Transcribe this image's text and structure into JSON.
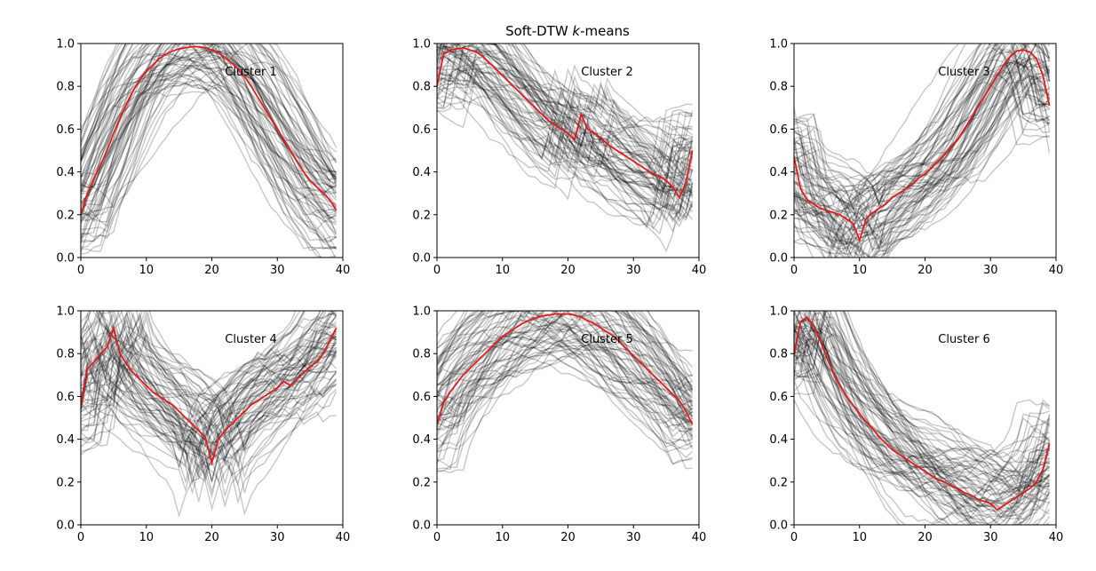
{
  "figure": {
    "title_text": "Soft-DTW ",
    "title_k": "k",
    "title_suffix": "-means"
  },
  "colors": {
    "series": "#000000",
    "barycenter": "#e41a1c",
    "axis": "#000000",
    "background": "#ffffff"
  },
  "chart_data": [
    {
      "type": "line",
      "annotation": "Cluster 1",
      "xlim": [
        0,
        40
      ],
      "ylim": [
        0,
        1
      ],
      "xticks": [
        0,
        10,
        20,
        30,
        40
      ],
      "yticks": [
        0.0,
        0.2,
        0.4,
        0.6,
        0.8,
        1.0
      ],
      "series": [
        {
          "x": [
            0,
            1,
            2,
            3,
            4,
            5,
            6,
            7,
            8,
            9,
            10,
            11,
            12,
            13,
            14,
            15,
            16,
            17,
            18,
            19,
            20,
            21,
            22,
            23,
            24,
            25,
            26,
            27,
            28,
            29,
            30,
            31,
            32,
            33,
            34,
            35,
            36,
            37,
            38,
            39
          ],
          "y": [
            0.2,
            0.3,
            0.37,
            0.43,
            0.5,
            0.58,
            0.65,
            0.72,
            0.78,
            0.83,
            0.87,
            0.9,
            0.93,
            0.95,
            0.965,
            0.975,
            0.98,
            0.985,
            0.985,
            0.98,
            0.97,
            0.955,
            0.935,
            0.91,
            0.88,
            0.845,
            0.8,
            0.75,
            0.7,
            0.65,
            0.6,
            0.55,
            0.5,
            0.45,
            0.4,
            0.36,
            0.33,
            0.3,
            0.27,
            0.22
          ]
        }
      ]
    },
    {
      "type": "line",
      "annotation": "Cluster 2",
      "xlim": [
        0,
        40
      ],
      "ylim": [
        0,
        1
      ],
      "xticks": [
        0,
        10,
        20,
        30,
        40
      ],
      "yticks": [
        0.0,
        0.2,
        0.4,
        0.6,
        0.8,
        1.0
      ],
      "series": [
        {
          "x": [
            0,
            1,
            2,
            3,
            4,
            5,
            6,
            7,
            8,
            9,
            10,
            11,
            12,
            13,
            14,
            15,
            16,
            17,
            18,
            19,
            20,
            21,
            22,
            23,
            24,
            25,
            26,
            27,
            28,
            29,
            30,
            31,
            32,
            33,
            34,
            35,
            36,
            37,
            38,
            39
          ],
          "y": [
            0.8,
            0.95,
            0.97,
            0.975,
            0.98,
            0.97,
            0.96,
            0.94,
            0.91,
            0.88,
            0.85,
            0.82,
            0.79,
            0.76,
            0.73,
            0.7,
            0.67,
            0.64,
            0.62,
            0.6,
            0.58,
            0.55,
            0.67,
            0.6,
            0.58,
            0.56,
            0.53,
            0.51,
            0.49,
            0.47,
            0.45,
            0.43,
            0.41,
            0.39,
            0.38,
            0.36,
            0.33,
            0.28,
            0.35,
            0.5
          ]
        }
      ]
    },
    {
      "type": "line",
      "annotation": "Cluster 3",
      "xlim": [
        0,
        40
      ],
      "ylim": [
        0,
        1
      ],
      "xticks": [
        0,
        10,
        20,
        30,
        40
      ],
      "yticks": [
        0.0,
        0.2,
        0.4,
        0.6,
        0.8,
        1.0
      ],
      "series": [
        {
          "x": [
            0,
            1,
            2,
            3,
            4,
            5,
            6,
            7,
            8,
            9,
            10,
            11,
            12,
            13,
            14,
            15,
            16,
            17,
            18,
            19,
            20,
            21,
            22,
            23,
            24,
            25,
            26,
            27,
            28,
            29,
            30,
            31,
            32,
            33,
            34,
            35,
            36,
            37,
            38,
            39
          ],
          "y": [
            0.47,
            0.32,
            0.27,
            0.25,
            0.23,
            0.22,
            0.21,
            0.2,
            0.18,
            0.16,
            0.08,
            0.18,
            0.21,
            0.23,
            0.25,
            0.28,
            0.3,
            0.32,
            0.34,
            0.37,
            0.39,
            0.42,
            0.45,
            0.48,
            0.52,
            0.55,
            0.6,
            0.65,
            0.7,
            0.75,
            0.8,
            0.85,
            0.9,
            0.94,
            0.965,
            0.97,
            0.96,
            0.93,
            0.85,
            0.71
          ]
        }
      ]
    },
    {
      "type": "line",
      "annotation": "Cluster 4",
      "xlim": [
        0,
        40
      ],
      "ylim": [
        0,
        1
      ],
      "xticks": [
        0,
        10,
        20,
        30,
        40
      ],
      "yticks": [
        0.0,
        0.2,
        0.4,
        0.6,
        0.8,
        1.0
      ],
      "series": [
        {
          "x": [
            0,
            1,
            2,
            3,
            4,
            5,
            6,
            7,
            8,
            9,
            10,
            11,
            12,
            13,
            14,
            15,
            16,
            17,
            18,
            19,
            20,
            21,
            22,
            23,
            24,
            25,
            26,
            27,
            28,
            29,
            30,
            31,
            32,
            33,
            34,
            35,
            36,
            37,
            38,
            39
          ],
          "y": [
            0.55,
            0.73,
            0.76,
            0.8,
            0.83,
            0.92,
            0.8,
            0.75,
            0.71,
            0.68,
            0.65,
            0.62,
            0.6,
            0.58,
            0.56,
            0.53,
            0.5,
            0.47,
            0.44,
            0.41,
            0.29,
            0.4,
            0.44,
            0.47,
            0.5,
            0.53,
            0.56,
            0.58,
            0.6,
            0.62,
            0.64,
            0.67,
            0.65,
            0.68,
            0.71,
            0.74,
            0.76,
            0.8,
            0.86,
            0.92
          ]
        }
      ]
    },
    {
      "type": "line",
      "annotation": "Cluster 5",
      "xlim": [
        0,
        40
      ],
      "ylim": [
        0,
        1
      ],
      "xticks": [
        0,
        10,
        20,
        30,
        40
      ],
      "yticks": [
        0.0,
        0.2,
        0.4,
        0.6,
        0.8,
        1.0
      ],
      "series": [
        {
          "x": [
            0,
            1,
            2,
            3,
            4,
            5,
            6,
            7,
            8,
            9,
            10,
            11,
            12,
            13,
            14,
            15,
            16,
            17,
            18,
            19,
            20,
            21,
            22,
            23,
            24,
            25,
            26,
            27,
            28,
            29,
            30,
            31,
            32,
            33,
            34,
            35,
            36,
            37,
            38,
            39
          ],
          "y": [
            0.47,
            0.57,
            0.62,
            0.66,
            0.7,
            0.73,
            0.76,
            0.79,
            0.82,
            0.85,
            0.88,
            0.9,
            0.92,
            0.94,
            0.955,
            0.965,
            0.975,
            0.98,
            0.985,
            0.985,
            0.985,
            0.98,
            0.97,
            0.955,
            0.94,
            0.92,
            0.9,
            0.88,
            0.85,
            0.82,
            0.79,
            0.76,
            0.73,
            0.7,
            0.67,
            0.64,
            0.61,
            0.58,
            0.53,
            0.47
          ]
        }
      ]
    },
    {
      "type": "line",
      "annotation": "Cluster 6",
      "xlim": [
        0,
        40
      ],
      "ylim": [
        0,
        1
      ],
      "xticks": [
        0,
        10,
        20,
        30,
        40
      ],
      "yticks": [
        0.0,
        0.2,
        0.4,
        0.6,
        0.8,
        1.0
      ],
      "series": [
        {
          "x": [
            0,
            1,
            2,
            3,
            4,
            5,
            6,
            7,
            8,
            9,
            10,
            11,
            12,
            13,
            14,
            15,
            16,
            17,
            18,
            19,
            20,
            21,
            22,
            23,
            24,
            25,
            26,
            27,
            28,
            29,
            30,
            31,
            32,
            33,
            34,
            35,
            36,
            37,
            38,
            39
          ],
          "y": [
            0.8,
            0.95,
            0.97,
            0.93,
            0.86,
            0.78,
            0.71,
            0.65,
            0.6,
            0.56,
            0.52,
            0.48,
            0.45,
            0.41,
            0.38,
            0.35,
            0.33,
            0.31,
            0.29,
            0.27,
            0.25,
            0.23,
            0.21,
            0.2,
            0.18,
            0.17,
            0.15,
            0.14,
            0.12,
            0.11,
            0.1,
            0.07,
            0.09,
            0.11,
            0.13,
            0.15,
            0.17,
            0.2,
            0.26,
            0.38
          ]
        }
      ]
    }
  ]
}
